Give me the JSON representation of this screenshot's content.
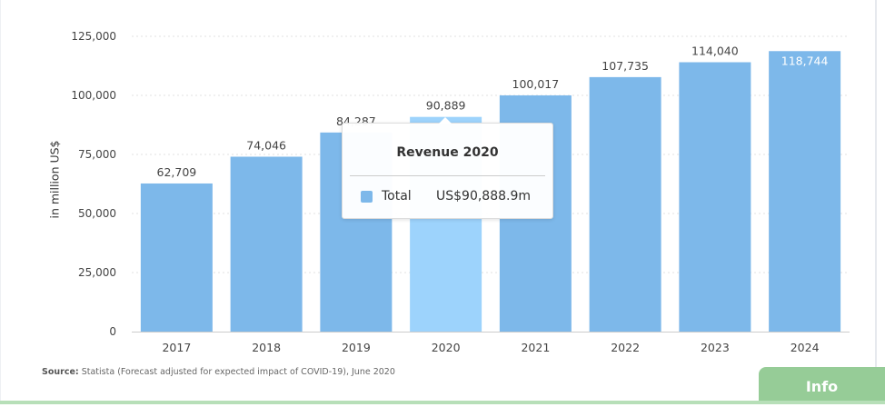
{
  "chart_data": {
    "type": "bar",
    "title": "",
    "ylabel": "in million US$",
    "xlabel": "",
    "categories": [
      "2017",
      "2018",
      "2019",
      "2020",
      "2021",
      "2022",
      "2023",
      "2024"
    ],
    "values": [
      62709,
      74046,
      84287,
      90889,
      100017,
      107735,
      114040,
      118744
    ],
    "value_labels": [
      "62,709",
      "74,046",
      "84,287",
      "90,889",
      "100,017",
      "107,735",
      "114,040",
      "118,744"
    ],
    "yticks": [
      0,
      25000,
      50000,
      75000,
      100000,
      125000
    ],
    "ytick_labels": [
      "0",
      "25,000",
      "50,000",
      "75,000",
      "100,000",
      "125,000"
    ],
    "ylim": [
      0,
      125000
    ],
    "grid": true,
    "highlighted": "2020",
    "colors": {
      "bar": "#7db8ea",
      "highlight": "#9dd3fc"
    }
  },
  "tooltip": {
    "title": "Revenue 2020",
    "series": "Total",
    "value": "US$90,888.9m"
  },
  "source": {
    "label": "Source:",
    "text": "Statista (Forecast adjusted for expected impact of COVID-19), June 2020"
  },
  "info_button": "Info"
}
